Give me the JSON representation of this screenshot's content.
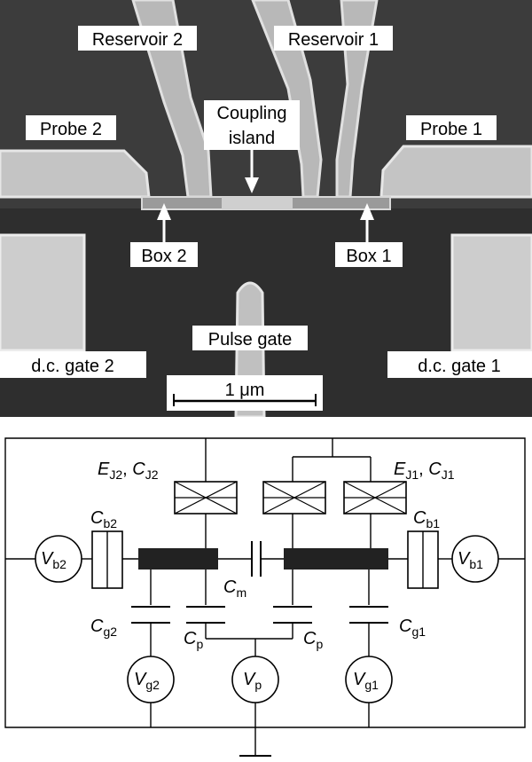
{
  "micrograph": {
    "labels": {
      "reservoir2": "Reservoir 2",
      "reservoir1": "Reservoir 1",
      "probe2": "Probe 2",
      "probe1": "Probe 1",
      "coupling_line1": "Coupling",
      "coupling_line2": "island",
      "box2": "Box 2",
      "box1": "Box 1",
      "pulse_gate": "Pulse gate",
      "dc_gate2": "d.c. gate 2",
      "dc_gate1": "d.c. gate 1",
      "scale_bar": "1 μm"
    },
    "colors": {
      "background": "#3a3a3a",
      "metal": "#c8c8c8",
      "metal_edge": "#e6e6e6"
    }
  },
  "circuit": {
    "labels": {
      "ej2": {
        "main": "E",
        "sub": "J2",
        "sep": ", ",
        "main2": "C",
        "sub2": "J2"
      },
      "ej1": {
        "main": "E",
        "sub": "J1",
        "sep": ", ",
        "main2": "C",
        "sub2": "J1"
      },
      "cb2": {
        "main": "C",
        "sub": "b2"
      },
      "cb1": {
        "main": "C",
        "sub": "b1"
      },
      "vb2": {
        "main": "V",
        "sub": "b2"
      },
      "vb1": {
        "main": "V",
        "sub": "b1"
      },
      "cm": {
        "main": "C",
        "sub": "m"
      },
      "cg2": {
        "main": "C",
        "sub": "g2"
      },
      "cg1": {
        "main": "C",
        "sub": "g1"
      },
      "cp_left": {
        "main": "C",
        "sub": "p"
      },
      "cp_right": {
        "main": "C",
        "sub": "p"
      },
      "vg2": {
        "main": "V",
        "sub": "g2"
      },
      "vp": {
        "main": "V",
        "sub": "p"
      },
      "vg1": {
        "main": "V",
        "sub": "g1"
      }
    }
  }
}
